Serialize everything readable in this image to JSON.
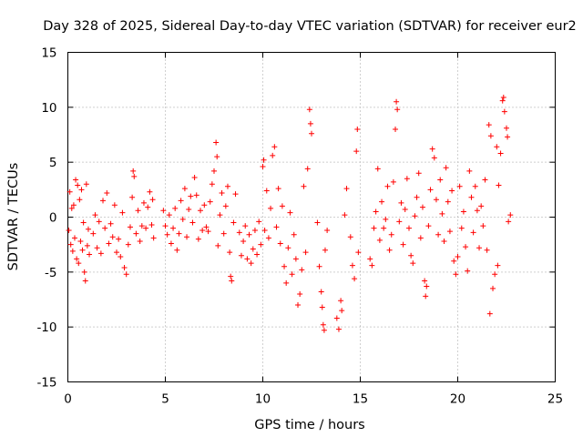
{
  "chart_data": {
    "type": "scatter",
    "title": "Day 328 of 2025, Sidereal Day-to-day VTEC variation (SDTVAR) for receiver eur2",
    "xlabel": "GPS time / hours",
    "ylabel": "SDTVAR / TECUs",
    "xlim": [
      0,
      25
    ],
    "ylim": [
      -15,
      15
    ],
    "xticks": [
      "0",
      "5",
      "10",
      "15",
      "20",
      "25"
    ],
    "yticks": [
      "15",
      "10",
      "5",
      "0",
      "-5",
      "-10",
      "-15"
    ],
    "grid": true,
    "marker": "+",
    "color": "#ff0000",
    "series": [
      {
        "name": "SDTVAR",
        "points": [
          [
            0.05,
            -1.2
          ],
          [
            0.1,
            2.3
          ],
          [
            0.15,
            -2.5
          ],
          [
            0.2,
            0.8
          ],
          [
            0.25,
            -3.1
          ],
          [
            0.3,
            1.1
          ],
          [
            0.35,
            -1.9
          ],
          [
            0.4,
            3.4
          ],
          [
            0.45,
            -3.8
          ],
          [
            0.5,
            2.9
          ],
          [
            0.55,
            -4.2
          ],
          [
            0.6,
            1.6
          ],
          [
            0.65,
            -2.2
          ],
          [
            0.7,
            2.5
          ],
          [
            0.75,
            -3.0
          ],
          [
            0.8,
            -0.5
          ],
          [
            0.85,
            -5.0
          ],
          [
            0.9,
            -5.8
          ],
          [
            0.95,
            3.0
          ],
          [
            1.0,
            -2.6
          ],
          [
            1.05,
            -1.1
          ],
          [
            1.1,
            -3.4
          ],
          [
            1.3,
            -1.5
          ],
          [
            1.4,
            0.2
          ],
          [
            1.5,
            -2.8
          ],
          [
            1.6,
            -0.4
          ],
          [
            1.7,
            -3.3
          ],
          [
            1.8,
            1.5
          ],
          [
            1.9,
            -1.0
          ],
          [
            2.0,
            2.2
          ],
          [
            2.1,
            -2.4
          ],
          [
            2.2,
            -0.6
          ],
          [
            2.3,
            -1.8
          ],
          [
            2.4,
            1.1
          ],
          [
            2.5,
            -3.2
          ],
          [
            2.6,
            -2.0
          ],
          [
            2.7,
            -3.6
          ],
          [
            2.8,
            0.4
          ],
          [
            2.9,
            -4.6
          ],
          [
            3.0,
            -5.2
          ],
          [
            3.1,
            -2.5
          ],
          [
            3.2,
            -0.9
          ],
          [
            3.3,
            1.8
          ],
          [
            3.35,
            4.2
          ],
          [
            3.4,
            3.7
          ],
          [
            3.5,
            -1.5
          ],
          [
            3.6,
            0.6
          ],
          [
            3.7,
            -2.2
          ],
          [
            3.8,
            -0.8
          ],
          [
            3.9,
            1.3
          ],
          [
            4.0,
            -1.0
          ],
          [
            4.1,
            0.9
          ],
          [
            4.2,
            2.3
          ],
          [
            4.3,
            -0.7
          ],
          [
            4.35,
            1.6
          ],
          [
            4.4,
            -1.9
          ],
          [
            4.9,
            0.6
          ],
          [
            5.0,
            -0.8
          ],
          [
            5.1,
            -1.6
          ],
          [
            5.2,
            0.2
          ],
          [
            5.3,
            -2.4
          ],
          [
            5.4,
            -1.0
          ],
          [
            5.5,
            0.8
          ],
          [
            5.6,
            -3.0
          ],
          [
            5.7,
            -1.5
          ],
          [
            5.8,
            1.5
          ],
          [
            5.9,
            -0.2
          ],
          [
            6.0,
            2.6
          ],
          [
            6.1,
            -1.8
          ],
          [
            6.2,
            0.7
          ],
          [
            6.3,
            1.9
          ],
          [
            6.4,
            -0.5
          ],
          [
            6.5,
            3.6
          ],
          [
            6.6,
            2.0
          ],
          [
            6.7,
            -2.0
          ],
          [
            6.8,
            0.6
          ],
          [
            6.9,
            -1.2
          ],
          [
            7.0,
            1.1
          ],
          [
            7.1,
            -0.9
          ],
          [
            7.2,
            -1.3
          ],
          [
            7.3,
            1.4
          ],
          [
            7.4,
            3.0
          ],
          [
            7.5,
            4.2
          ],
          [
            7.6,
            6.8
          ],
          [
            7.65,
            5.5
          ],
          [
            7.7,
            -2.6
          ],
          [
            7.8,
            0.2
          ],
          [
            7.9,
            2.2
          ],
          [
            8.0,
            -1.5
          ],
          [
            8.1,
            1.0
          ],
          [
            8.2,
            2.8
          ],
          [
            8.3,
            -3.2
          ],
          [
            8.35,
            -5.4
          ],
          [
            8.4,
            -5.8
          ],
          [
            8.5,
            -0.5
          ],
          [
            8.6,
            2.1
          ],
          [
            8.8,
            -1.4
          ],
          [
            8.9,
            -3.5
          ],
          [
            9.0,
            -2.2
          ],
          [
            9.1,
            -0.8
          ],
          [
            9.2,
            -3.8
          ],
          [
            9.3,
            -1.6
          ],
          [
            9.4,
            -4.2
          ],
          [
            9.5,
            -2.9
          ],
          [
            9.6,
            -1.2
          ],
          [
            9.7,
            -3.4
          ],
          [
            9.8,
            -0.4
          ],
          [
            9.9,
            -2.5
          ],
          [
            10.0,
            4.6
          ],
          [
            10.05,
            5.2
          ],
          [
            10.1,
            -1.2
          ],
          [
            10.2,
            2.4
          ],
          [
            10.3,
            -1.9
          ],
          [
            10.4,
            0.8
          ],
          [
            10.5,
            5.6
          ],
          [
            10.6,
            6.4
          ],
          [
            10.7,
            -0.9
          ],
          [
            10.8,
            2.6
          ],
          [
            10.9,
            -2.4
          ],
          [
            11.0,
            1.0
          ],
          [
            11.1,
            -4.5
          ],
          [
            11.2,
            -6.0
          ],
          [
            11.3,
            -2.8
          ],
          [
            11.4,
            0.4
          ],
          [
            11.5,
            -5.2
          ],
          [
            11.6,
            -1.6
          ],
          [
            11.7,
            -3.8
          ],
          [
            11.8,
            -8.0
          ],
          [
            11.9,
            -7.0
          ],
          [
            12.0,
            -4.8
          ],
          [
            12.1,
            2.8
          ],
          [
            12.2,
            -3.2
          ],
          [
            12.3,
            4.4
          ],
          [
            12.4,
            9.8
          ],
          [
            12.45,
            8.5
          ],
          [
            12.5,
            7.6
          ],
          [
            12.8,
            -0.5
          ],
          [
            12.9,
            -4.5
          ],
          [
            13.0,
            -6.8
          ],
          [
            13.05,
            -8.2
          ],
          [
            13.1,
            -9.8
          ],
          [
            13.15,
            -10.3
          ],
          [
            13.2,
            -3.0
          ],
          [
            13.3,
            -1.2
          ],
          [
            13.8,
            -9.2
          ],
          [
            13.9,
            -10.2
          ],
          [
            14.0,
            -7.6
          ],
          [
            14.05,
            -8.5
          ],
          [
            14.2,
            0.2
          ],
          [
            14.3,
            2.6
          ],
          [
            14.5,
            -1.8
          ],
          [
            14.6,
            -4.4
          ],
          [
            14.7,
            -5.6
          ],
          [
            14.8,
            6.0
          ],
          [
            14.85,
            8.0
          ],
          [
            14.9,
            -3.2
          ],
          [
            15.5,
            -3.8
          ],
          [
            15.6,
            -4.4
          ],
          [
            15.7,
            -1.0
          ],
          [
            15.8,
            0.5
          ],
          [
            15.9,
            4.4
          ],
          [
            16.0,
            -2.1
          ],
          [
            16.1,
            1.4
          ],
          [
            16.2,
            -1.0
          ],
          [
            16.3,
            -0.2
          ],
          [
            16.4,
            2.8
          ],
          [
            16.5,
            -3.0
          ],
          [
            16.6,
            -1.6
          ],
          [
            16.7,
            3.2
          ],
          [
            16.8,
            8.0
          ],
          [
            16.85,
            10.5
          ],
          [
            16.9,
            9.8
          ],
          [
            17.0,
            -0.4
          ],
          [
            17.1,
            1.3
          ],
          [
            17.2,
            -2.5
          ],
          [
            17.3,
            0.7
          ],
          [
            17.4,
            3.5
          ],
          [
            17.5,
            -1.0
          ],
          [
            17.6,
            -3.5
          ],
          [
            17.7,
            -4.2
          ],
          [
            17.8,
            0.1
          ],
          [
            17.9,
            1.8
          ],
          [
            18.0,
            4.0
          ],
          [
            18.1,
            -1.9
          ],
          [
            18.2,
            0.9
          ],
          [
            18.3,
            -5.8
          ],
          [
            18.35,
            -7.2
          ],
          [
            18.4,
            -6.3
          ],
          [
            18.5,
            -0.8
          ],
          [
            18.6,
            2.5
          ],
          [
            18.7,
            6.2
          ],
          [
            18.8,
            5.4
          ],
          [
            18.9,
            1.6
          ],
          [
            19.0,
            -1.6
          ],
          [
            19.1,
            3.4
          ],
          [
            19.2,
            0.3
          ],
          [
            19.3,
            -2.2
          ],
          [
            19.4,
            4.5
          ],
          [
            19.5,
            1.4
          ],
          [
            19.6,
            -1.3
          ],
          [
            19.7,
            2.4
          ],
          [
            19.8,
            -4.0
          ],
          [
            19.9,
            -5.2
          ],
          [
            20.0,
            -3.6
          ],
          [
            20.1,
            2.8
          ],
          [
            20.2,
            -1.0
          ],
          [
            20.3,
            0.5
          ],
          [
            20.4,
            -2.7
          ],
          [
            20.5,
            -4.9
          ],
          [
            20.6,
            4.2
          ],
          [
            20.7,
            1.8
          ],
          [
            20.8,
            -1.4
          ],
          [
            20.9,
            2.8
          ],
          [
            21.0,
            0.6
          ],
          [
            21.1,
            -2.8
          ],
          [
            21.2,
            1.0
          ],
          [
            21.3,
            -0.8
          ],
          [
            21.4,
            3.4
          ],
          [
            21.5,
            -3.0
          ],
          [
            21.6,
            8.4
          ],
          [
            21.65,
            -8.8
          ],
          [
            21.7,
            7.4
          ],
          [
            21.8,
            -6.5
          ],
          [
            21.9,
            -5.2
          ],
          [
            22.0,
            6.4
          ],
          [
            22.05,
            -4.4
          ],
          [
            22.1,
            2.9
          ],
          [
            22.2,
            5.8
          ],
          [
            22.3,
            10.6
          ],
          [
            22.35,
            10.9
          ],
          [
            22.4,
            9.6
          ],
          [
            22.5,
            8.1
          ],
          [
            22.55,
            7.3
          ],
          [
            22.6,
            -0.4
          ],
          [
            22.7,
            0.2
          ]
        ]
      }
    ]
  }
}
